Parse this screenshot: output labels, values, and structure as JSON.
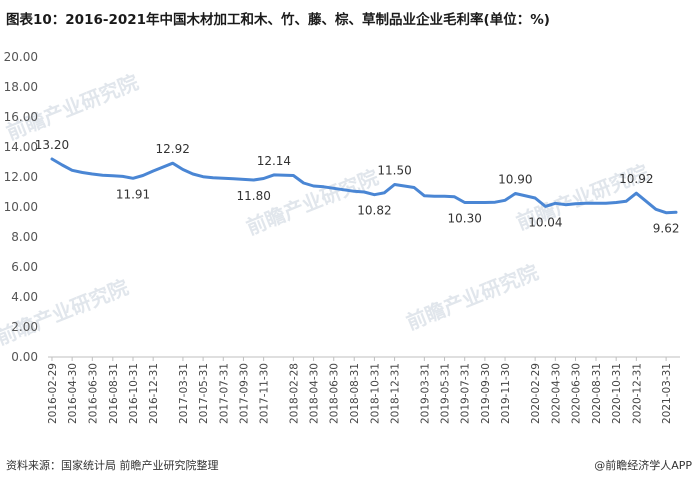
{
  "title": "图表10：2016-2021年中国木材加工和木、竹、藤、棕、草制品业企业毛利率(单位：%)",
  "source": "资料来源：国家统计局 前瞻产业研究院整理",
  "brand": "@前瞻经济学人APP",
  "watermark": "前瞻产业研究院",
  "colors": {
    "line": "#4a86d4",
    "axis": "#bfbfbf",
    "grid": "#d9d9d9"
  },
  "chart_data": {
    "type": "line",
    "title": "2016-2021年中国木材加工和木、竹、藤、棕、草制品业企业毛利率",
    "ylabel": "",
    "xlabel": "",
    "ylim": [
      0,
      20
    ],
    "ytick_step": 2,
    "grid": false,
    "x_tick_labels": [
      "2016-02-29",
      "2016-04-30",
      "2016-06-30",
      "2016-08-31",
      "2016-10-31",
      "2016-12-31",
      "2017-03-31",
      "2017-05-31",
      "2017-07-31",
      "2017-09-30",
      "2017-11-30",
      "2018-02-28",
      "2018-04-30",
      "2018-06-30",
      "2018-08-31",
      "2018-10-31",
      "2018-12-31",
      "2019-03-31",
      "2019-05-31",
      "2019-07-31",
      "2019-09-30",
      "2019-11-30",
      "2020-02-29",
      "2020-04-30",
      "2020-06-30",
      "2020-08-31",
      "2020-10-31",
      "2020-12-31",
      "2021-03-31"
    ],
    "x": [
      "2016-02-29",
      "2016-03-31",
      "2016-04-30",
      "2016-05-31",
      "2016-06-30",
      "2016-07-31",
      "2016-08-31",
      "2016-09-30",
      "2016-10-31",
      "2016-11-30",
      "2016-12-31",
      "2017-02-28",
      "2017-03-31",
      "2017-04-30",
      "2017-05-31",
      "2017-06-30",
      "2017-07-31",
      "2017-08-31",
      "2017-09-30",
      "2017-10-31",
      "2017-11-30",
      "2017-12-31",
      "2018-02-28",
      "2018-03-31",
      "2018-04-30",
      "2018-05-31",
      "2018-06-30",
      "2018-07-31",
      "2018-08-31",
      "2018-09-30",
      "2018-10-31",
      "2018-11-30",
      "2018-12-31",
      "2019-02-28",
      "2019-03-31",
      "2019-04-30",
      "2019-05-31",
      "2019-06-30",
      "2019-07-31",
      "2019-08-31",
      "2019-09-30",
      "2019-10-31",
      "2019-11-30",
      "2019-12-31",
      "2020-02-29",
      "2020-03-31",
      "2020-04-30",
      "2020-05-31",
      "2020-06-30",
      "2020-07-31",
      "2020-08-31",
      "2020-09-30",
      "2020-10-31",
      "2020-11-30",
      "2020-12-31",
      "2021-02-28",
      "2021-03-31",
      "2021-04-30"
    ],
    "series": [
      {
        "name": "",
        "values": [
          13.2,
          12.8,
          12.45,
          12.3,
          12.2,
          12.12,
          12.08,
          12.04,
          11.91,
          12.1,
          12.4,
          12.92,
          12.5,
          12.2,
          12.02,
          11.95,
          11.92,
          11.88,
          11.84,
          11.8,
          11.9,
          12.14,
          12.1,
          11.6,
          11.4,
          11.35,
          11.25,
          11.15,
          11.05,
          11.0,
          10.82,
          10.95,
          11.5,
          11.3,
          10.75,
          10.72,
          10.72,
          10.68,
          10.3,
          10.3,
          10.3,
          10.32,
          10.45,
          10.9,
          10.6,
          10.04,
          10.25,
          10.15,
          10.22,
          10.25,
          10.25,
          10.25,
          10.3,
          10.38,
          10.92,
          9.85,
          9.62,
          9.65
        ]
      }
    ],
    "data_labels": [
      {
        "x": "2016-02-29",
        "text": "13.20"
      },
      {
        "x": "2016-10-31",
        "text": "11.91"
      },
      {
        "x": "2017-02-28",
        "text": "12.92"
      },
      {
        "x": "2017-10-31",
        "text": "11.80"
      },
      {
        "x": "2017-12-31",
        "text": "12.14"
      },
      {
        "x": "2018-10-31",
        "text": "10.82"
      },
      {
        "x": "2018-12-31",
        "text": "11.50"
      },
      {
        "x": "2019-07-31",
        "text": "10.30"
      },
      {
        "x": "2019-12-31",
        "text": "10.90"
      },
      {
        "x": "2020-03-31",
        "text": "10.04"
      },
      {
        "x": "2020-12-31",
        "text": "10.92"
      },
      {
        "x": "2021-03-31",
        "text": "9.62"
      }
    ]
  }
}
